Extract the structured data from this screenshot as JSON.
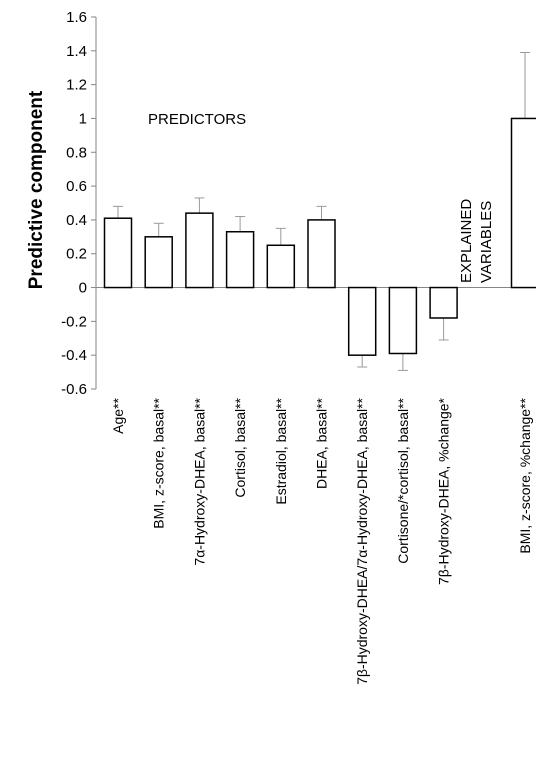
{
  "chart_data": {
    "type": "bar",
    "ylabel": "Predictive component",
    "ylim": [
      -0.6,
      1.6
    ],
    "yticks": [
      "1.6",
      "1.4",
      "1.2",
      "1",
      "0.8",
      "0.6",
      "0.4",
      "0.2",
      "0",
      "-0.2",
      "-0.4",
      "-0.6"
    ],
    "ytick_values": [
      1.6,
      1.4,
      1.2,
      1.0,
      0.8,
      0.6,
      0.4,
      0.2,
      0,
      -0.2,
      -0.4,
      -0.6
    ],
    "categories": [
      "Age**",
      "BMI, z-score, basal**",
      "7α-Hydroxy-DHEA, basal**",
      "Cortisol, basal**",
      "Estradiol, basal**",
      "DHEA, basal**",
      "7β-Hydroxy-DHEA/7α-Hydroxy-DHEA, basal**",
      "Cortisone/*cortisol, basal**",
      "7β-Hydroxy-DHEA, %change*",
      "BMI, z-score, %change**"
    ],
    "slots": [
      0,
      1,
      2,
      3,
      4,
      5,
      6,
      7,
      8,
      10
    ],
    "values": [
      0.41,
      0.3,
      0.44,
      0.33,
      0.25,
      0.4,
      -0.4,
      -0.39,
      -0.18,
      1.0
    ],
    "errors": [
      0.07,
      0.08,
      0.09,
      0.09,
      0.1,
      0.08,
      0.07,
      0.1,
      0.13,
      0.39
    ],
    "annotations": {
      "predictors": "PREDICTORS",
      "explained_line1": "EXPLAINED",
      "explained_line2": "VARIABLES"
    }
  }
}
